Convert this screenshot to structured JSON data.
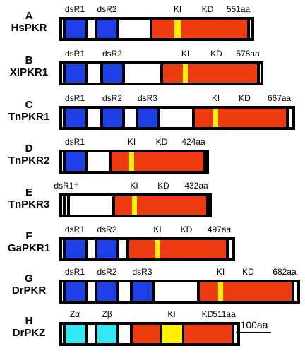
{
  "colors": {
    "dsRBD": "#1f3fe6",
    "ZBD": "#33e8f0",
    "kinase": "#ee3a10",
    "insert": "#fff200",
    "linker": "#ffffff",
    "outline": "#000000"
  },
  "scale_bar_label": "100aa",
  "proteins": [
    {
      "letter": "A",
      "name": "HsPKR",
      "length_aa": 551,
      "length_label": "551aa",
      "domains": [
        {
          "type": "dsRBD",
          "label": "dsR1",
          "start": 9,
          "end": 79
        },
        {
          "type": "dsRBD",
          "label": "dsR2",
          "start": 100,
          "end": 170
        },
        {
          "type": "kinase",
          "label": "",
          "start": 255,
          "end": 540
        },
        {
          "type": "insert",
          "label": "KI",
          "start": 326,
          "end": 344
        },
        {
          "type": "kinase_label",
          "label": "KD",
          "start": 420,
          "end": 420
        }
      ]
    },
    {
      "letter": "B",
      "name": "XlPKR1",
      "length_aa": 578,
      "length_label": "578aa",
      "domains": [
        {
          "type": "dsRBD",
          "label": "dsR1",
          "start": 9,
          "end": 79
        },
        {
          "type": "dsRBD",
          "label": "dsR2",
          "start": 115,
          "end": 185
        },
        {
          "type": "kinase",
          "label": "",
          "start": 285,
          "end": 568
        },
        {
          "type": "insert",
          "label": "KI",
          "start": 350,
          "end": 364
        },
        {
          "type": "kinase_label",
          "label": "KD",
          "start": 445,
          "end": 445
        }
      ]
    },
    {
      "letter": "C",
      "name": "TnPKR1",
      "length_aa": 667,
      "length_label": "667aa",
      "domains": [
        {
          "type": "dsRBD",
          "label": "dsR1",
          "start": 9,
          "end": 79
        },
        {
          "type": "dsRBD",
          "label": "dsR2",
          "start": 115,
          "end": 185
        },
        {
          "type": "dsRBD",
          "label": "dsR3",
          "start": 215,
          "end": 285
        },
        {
          "type": "kinase",
          "label": "",
          "start": 375,
          "end": 650
        },
        {
          "type": "insert",
          "label": "KI",
          "start": 436,
          "end": 450
        },
        {
          "type": "kinase_label",
          "label": "KD",
          "start": 525,
          "end": 525
        }
      ]
    },
    {
      "letter": "D",
      "name": "TnPKR2",
      "length_aa": 424,
      "length_label": "424aa",
      "domains": [
        {
          "type": "dsRBD",
          "label": "dsR1",
          "start": 9,
          "end": 79
        },
        {
          "type": "kinase",
          "label": "",
          "start": 140,
          "end": 416
        },
        {
          "type": "insert",
          "label": "KI",
          "start": 198,
          "end": 212
        },
        {
          "type": "kinase_label",
          "label": "KD",
          "start": 290,
          "end": 290
        }
      ]
    },
    {
      "letter": "E",
      "name": "TnPKR3",
      "length_aa": 432,
      "length_label": "432aa",
      "domains": [
        {
          "type": "dsRBD_partial",
          "label": "dsR1†",
          "start": 9,
          "end": 30
        },
        {
          "type": "kinase",
          "label": "",
          "start": 150,
          "end": 424
        },
        {
          "type": "insert",
          "label": "KI",
          "start": 205,
          "end": 219
        },
        {
          "type": "kinase_label",
          "label": "KD",
          "start": 295,
          "end": 295
        }
      ]
    },
    {
      "letter": "F",
      "name": "GaPKR1",
      "length_aa": 497,
      "length_label": "497aa",
      "domains": [
        {
          "type": "dsRBD",
          "label": "dsR1",
          "start": 9,
          "end": 79
        },
        {
          "type": "dsRBD",
          "label": "dsR2",
          "start": 100,
          "end": 170
        },
        {
          "type": "kinase",
          "label": "",
          "start": 190,
          "end": 480
        },
        {
          "type": "insert",
          "label": "KI",
          "start": 272,
          "end": 284
        },
        {
          "type": "kinase_label",
          "label": "KD",
          "start": 360,
          "end": 360
        }
      ]
    },
    {
      "letter": "G",
      "name": "DrPKR",
      "length_aa": 682,
      "length_label": "682aa",
      "domains": [
        {
          "type": "dsRBD",
          "label": "dsR1",
          "start": 9,
          "end": 79
        },
        {
          "type": "dsRBD",
          "label": "dsR2",
          "start": 100,
          "end": 170
        },
        {
          "type": "dsRBD",
          "label": "dsR3",
          "start": 200,
          "end": 270
        },
        {
          "type": "kinase",
          "label": "",
          "start": 390,
          "end": 665
        },
        {
          "type": "insert",
          "label": "KI",
          "start": 450,
          "end": 464
        },
        {
          "type": "kinase_label",
          "label": "KD",
          "start": 535,
          "end": 535
        }
      ]
    },
    {
      "letter": "H",
      "name": "DrPKZ",
      "length_aa": 511,
      "length_label": "511aa",
      "domains": [
        {
          "type": "ZBD",
          "label": "Zα",
          "start": 9,
          "end": 79
        },
        {
          "type": "ZBD",
          "label": "Zβ",
          "start": 100,
          "end": 170
        },
        {
          "type": "kinase",
          "label": "",
          "start": 200,
          "end": 495
        },
        {
          "type": "insert",
          "label": "KI",
          "start": 283,
          "end": 353
        },
        {
          "type": "kinase_label",
          "label": "KD",
          "start": 420,
          "end": 420
        }
      ]
    }
  ]
}
